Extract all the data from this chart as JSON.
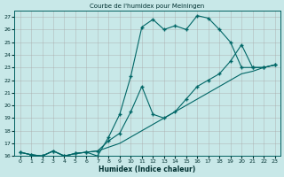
{
  "title": "Courbe de l'humidex pour Meiningen",
  "xlabel": "Humidex (Indice chaleur)",
  "bg_color": "#c8e8e8",
  "grid_color": "#aaaaaa",
  "line_color": "#006666",
  "xlim": [
    -0.5,
    23.5
  ],
  "ylim": [
    16,
    27.5
  ],
  "xticks": [
    0,
    1,
    2,
    3,
    4,
    5,
    6,
    7,
    8,
    9,
    10,
    11,
    12,
    13,
    14,
    15,
    16,
    17,
    18,
    19,
    20,
    21,
    22,
    23
  ],
  "yticks": [
    16,
    17,
    18,
    19,
    20,
    21,
    22,
    23,
    24,
    25,
    26,
    27
  ],
  "series1_x": [
    0,
    1,
    2,
    3,
    4,
    5,
    6,
    7,
    8,
    9,
    10,
    11,
    12,
    13,
    14,
    15,
    16,
    17,
    18,
    19,
    20,
    21,
    22,
    23
  ],
  "series1_y": [
    16.3,
    16.1,
    16.0,
    16.4,
    16.0,
    16.2,
    16.3,
    16.0,
    17.5,
    19.3,
    22.3,
    26.2,
    26.8,
    26.0,
    26.3,
    26.0,
    27.1,
    26.9,
    26.0,
    25.0,
    23.0,
    23.0,
    23.0,
    23.2
  ],
  "series2_x": [
    0,
    1,
    2,
    3,
    4,
    5,
    6,
    7,
    8,
    9,
    10,
    11,
    12,
    13,
    14,
    15,
    16,
    17,
    18,
    19,
    20,
    21,
    22,
    23
  ],
  "series2_y": [
    16.3,
    16.1,
    16.0,
    16.4,
    16.0,
    16.2,
    16.3,
    16.4,
    17.2,
    17.8,
    19.5,
    21.5,
    19.3,
    19.0,
    19.5,
    20.5,
    21.5,
    22.0,
    22.5,
    23.5,
    24.8,
    23.0,
    23.0,
    23.2
  ],
  "series3_x": [
    0,
    1,
    2,
    3,
    4,
    5,
    6,
    7,
    8,
    9,
    10,
    11,
    12,
    13,
    14,
    15,
    16,
    17,
    18,
    19,
    20,
    21,
    22,
    23
  ],
  "series3_y": [
    16.3,
    16.1,
    16.0,
    16.4,
    16.0,
    16.2,
    16.3,
    16.4,
    16.7,
    17.0,
    17.5,
    18.0,
    18.5,
    19.0,
    19.5,
    20.0,
    20.5,
    21.0,
    21.5,
    22.0,
    22.5,
    22.7,
    23.0,
    23.2
  ]
}
